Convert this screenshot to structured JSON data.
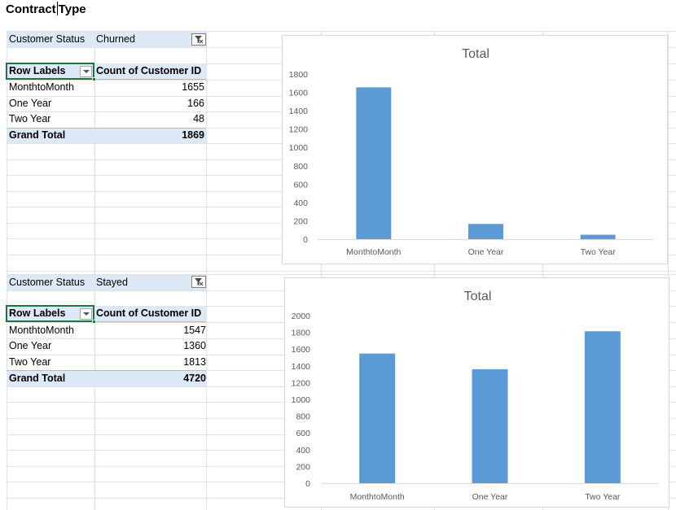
{
  "sheet_title": {
    "left": "Contract",
    "right": "Type"
  },
  "pivot1": {
    "filter_label": "Customer Status",
    "filter_value": "Churned",
    "col_row_labels": "Row Labels",
    "col_count": "Count of Customer ID",
    "rows": [
      {
        "label": "MonthtoMonth",
        "value": "1655"
      },
      {
        "label": "One Year",
        "value": "166"
      },
      {
        "label": "Two Year",
        "value": "48"
      }
    ],
    "grand_total_label": "Grand Total",
    "grand_total_value": "1869"
  },
  "pivot2": {
    "filter_label": "Customer Status",
    "filter_value": "Stayed",
    "col_row_labels": "Row Labels",
    "col_count": "Count of Customer ID",
    "rows": [
      {
        "label": "MonthtoMonth",
        "value": "1547"
      },
      {
        "label": "One Year",
        "value": "1360"
      },
      {
        "label": "Two Year",
        "value": "1813"
      }
    ],
    "grand_total_label": "Grand Total",
    "grand_total_value": "4720"
  },
  "colors": {
    "bar": "#5b9bd5",
    "axis_text": "#595959",
    "band": "#dde9f7"
  },
  "chart_data": [
    {
      "type": "bar",
      "title": "Total",
      "categories": [
        "MonthtoMonth",
        "One Year",
        "Two Year"
      ],
      "values": [
        1655,
        166,
        48
      ],
      "ylim": [
        0,
        1800
      ],
      "yticks": [
        "0",
        "200",
        "400",
        "600",
        "800",
        "1000",
        "1200",
        "1400",
        "1600",
        "1800"
      ],
      "grid": false,
      "legend": "none"
    },
    {
      "type": "bar",
      "title": "Total",
      "categories": [
        "MonthtoMonth",
        "One Year",
        "Two Year"
      ],
      "values": [
        1547,
        1360,
        1813
      ],
      "ylim": [
        0,
        2000
      ],
      "yticks": [
        "0",
        "200",
        "400",
        "600",
        "800",
        "1000",
        "1200",
        "1400",
        "1600",
        "1800",
        "2000"
      ],
      "grid": false,
      "legend": "none"
    }
  ]
}
